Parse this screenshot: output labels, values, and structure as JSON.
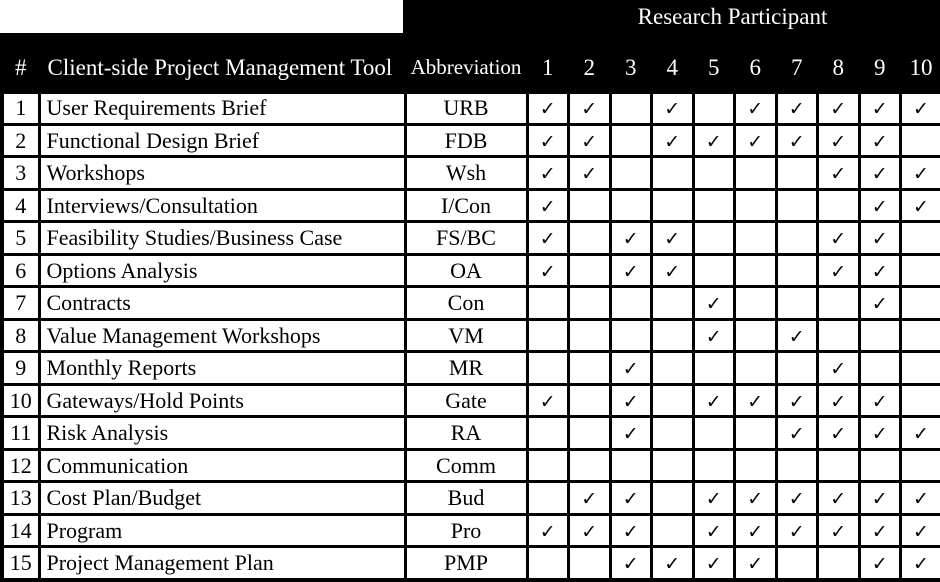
{
  "colors": {
    "header_bg": "#000000",
    "header_text": "#ffffff",
    "body_bg": "#ffffff",
    "body_text": "#000000",
    "border": "#000000"
  },
  "table": {
    "group_header": "Research Participant",
    "headers": {
      "number": "#",
      "tool": "Client-side Project Management Tool",
      "abbreviation": "Abbreviation"
    },
    "participants": [
      "1",
      "2",
      "3",
      "4",
      "5",
      "6",
      "7",
      "8",
      "9",
      "10"
    ],
    "check_glyph": "✓",
    "rows": [
      {
        "num": "1",
        "tool": "User Requirements Brief",
        "abbr": "URB",
        "checks": [
          1,
          1,
          0,
          1,
          0,
          1,
          1,
          1,
          1,
          1
        ]
      },
      {
        "num": "2",
        "tool": "Functional Design Brief",
        "abbr": "FDB",
        "checks": [
          1,
          1,
          0,
          1,
          1,
          1,
          1,
          1,
          1,
          0
        ]
      },
      {
        "num": "3",
        "tool": "Workshops",
        "abbr": "Wsh",
        "checks": [
          1,
          1,
          0,
          0,
          0,
          0,
          0,
          1,
          1,
          1
        ]
      },
      {
        "num": "4",
        "tool": "Interviews/Consultation",
        "abbr": "I/Con",
        "checks": [
          1,
          0,
          0,
          0,
          0,
          0,
          0,
          0,
          1,
          1
        ]
      },
      {
        "num": "5",
        "tool": "Feasibility Studies/Business Case",
        "abbr": "FS/BC",
        "checks": [
          1,
          0,
          1,
          1,
          0,
          0,
          0,
          1,
          1,
          0
        ]
      },
      {
        "num": "6",
        "tool": "Options Analysis",
        "abbr": "OA",
        "checks": [
          1,
          0,
          1,
          1,
          0,
          0,
          0,
          1,
          1,
          0
        ]
      },
      {
        "num": "7",
        "tool": "Contracts",
        "abbr": "Con",
        "checks": [
          0,
          0,
          0,
          0,
          1,
          0,
          0,
          0,
          1,
          0
        ]
      },
      {
        "num": "8",
        "tool": "Value Management Workshops",
        "abbr": "VM",
        "checks": [
          0,
          0,
          0,
          0,
          1,
          0,
          1,
          0,
          0,
          0
        ]
      },
      {
        "num": "9",
        "tool": "Monthly Reports",
        "abbr": "MR",
        "checks": [
          0,
          0,
          1,
          0,
          0,
          0,
          0,
          1,
          0,
          0
        ]
      },
      {
        "num": "10",
        "tool": "Gateways/Hold Points",
        "abbr": "Gate",
        "checks": [
          1,
          0,
          1,
          0,
          1,
          1,
          1,
          1,
          1,
          0
        ]
      },
      {
        "num": "11",
        "tool": "Risk Analysis",
        "abbr": "RA",
        "checks": [
          0,
          0,
          1,
          0,
          0,
          0,
          1,
          1,
          1,
          1
        ]
      },
      {
        "num": "12",
        "tool": "Communication",
        "abbr": "Comm",
        "checks": [
          0,
          0,
          0,
          0,
          0,
          0,
          0,
          0,
          0,
          0
        ]
      },
      {
        "num": "13",
        "tool": "Cost Plan/Budget",
        "abbr": "Bud",
        "checks": [
          0,
          1,
          1,
          0,
          1,
          1,
          1,
          1,
          1,
          1
        ]
      },
      {
        "num": "14",
        "tool": "Program",
        "abbr": "Pro",
        "checks": [
          1,
          1,
          1,
          0,
          1,
          1,
          1,
          1,
          1,
          1
        ]
      },
      {
        "num": "15",
        "tool": "Project Management Plan",
        "abbr": "PMP",
        "checks": [
          0,
          0,
          1,
          1,
          1,
          1,
          0,
          0,
          1,
          1
        ]
      }
    ]
  }
}
